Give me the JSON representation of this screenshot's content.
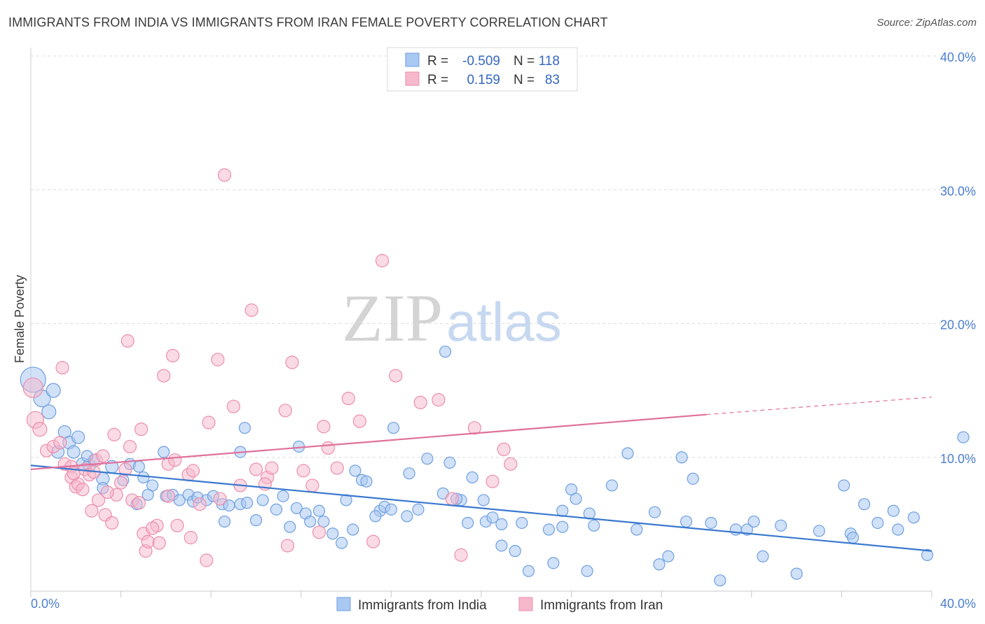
{
  "title": "IMMIGRANTS FROM INDIA VS IMMIGRANTS FROM IRAN FEMALE POVERTY CORRELATION CHART",
  "source": "Source: ZipAtlas.com",
  "watermark": {
    "zip": "ZIP",
    "atlas": "atlas"
  },
  "colors": {
    "india_fill": "#a9c8f2",
    "india_stroke": "#6f9fe0",
    "india_line": "#3a78d0",
    "iran_fill": "#f6b8cb",
    "iran_stroke": "#ec8eab",
    "iran_line": "#e0709a",
    "grid": "#dcdcdc",
    "tick_text": "#4a7fd0"
  },
  "legend": {
    "rows": [
      {
        "r_label": "R =",
        "r_value": "-0.509",
        "n_label": "N =",
        "n_value": "118"
      },
      {
        "r_label": "R =",
        "r_value": "0.159",
        "n_label": "N =",
        "n_value": "83"
      }
    ]
  },
  "chart_data": {
    "type": "scatter",
    "title": "IMMIGRANTS FROM INDIA VS IMMIGRANTS FROM IRAN FEMALE POVERTY CORRELATION CHART",
    "xlabel": "",
    "ylabel": "Female Poverty",
    "xlim": [
      0,
      40
    ],
    "ylim": [
      0,
      40
    ],
    "x_tick_labels": [
      "0.0%",
      "40.0%"
    ],
    "y_tick_labels": [
      "10.0%",
      "20.0%",
      "30.0%",
      "40.0%"
    ],
    "y_ticks": [
      10,
      20,
      30,
      40
    ],
    "grid": "horizontal dashed",
    "legend_position": "bottom-center",
    "series": [
      {
        "name": "Immigrants from India",
        "r": -0.509,
        "n": 118,
        "trend": {
          "x": [
            0,
            40
          ],
          "y": [
            9.4,
            3.0
          ]
        },
        "points": [
          [
            0.1,
            15.8,
            18
          ],
          [
            0.5,
            14.4,
            12
          ],
          [
            1.0,
            15.0,
            10
          ],
          [
            0.8,
            13.4,
            10
          ],
          [
            1.5,
            11.9,
            9
          ],
          [
            1.7,
            11.1,
            9
          ],
          [
            2.1,
            11.5,
            9
          ],
          [
            1.2,
            10.4,
            9
          ],
          [
            1.9,
            10.4,
            9
          ],
          [
            2.3,
            9.5,
            9
          ],
          [
            2.6,
            9.4,
            9
          ],
          [
            3.2,
            8.4,
            9
          ],
          [
            2.8,
            9.8,
            8
          ],
          [
            3.6,
            9.3,
            9
          ],
          [
            4.4,
            9.5,
            8
          ],
          [
            3.2,
            7.7,
            8
          ],
          [
            4.1,
            8.3,
            8
          ],
          [
            5.0,
            8.5,
            8
          ],
          [
            5.4,
            7.9,
            8
          ],
          [
            4.7,
            6.5,
            8
          ],
          [
            5.2,
            7.2,
            8
          ],
          [
            5.9,
            10.4,
            8
          ],
          [
            6.0,
            7.1,
            8
          ],
          [
            6.3,
            7.2,
            8
          ],
          [
            6.6,
            6.8,
            8
          ],
          [
            7.0,
            7.2,
            8
          ],
          [
            7.2,
            6.7,
            8
          ],
          [
            7.4,
            7.0,
            8
          ],
          [
            7.8,
            6.8,
            8
          ],
          [
            8.1,
            7.1,
            8
          ],
          [
            8.5,
            6.5,
            8
          ],
          [
            8.8,
            6.4,
            8
          ],
          [
            9.3,
            6.5,
            8
          ],
          [
            8.6,
            5.2,
            8
          ],
          [
            9.6,
            6.6,
            8
          ],
          [
            9.3,
            10.4,
            8
          ],
          [
            9.5,
            12.2,
            8
          ],
          [
            10.0,
            5.3,
            8
          ],
          [
            10.3,
            6.8,
            8
          ],
          [
            10.9,
            6.1,
            8
          ],
          [
            11.2,
            7.1,
            8
          ],
          [
            11.5,
            4.8,
            8
          ],
          [
            11.8,
            6.2,
            8
          ],
          [
            12.2,
            5.8,
            8
          ],
          [
            11.9,
            10.8,
            8
          ],
          [
            12.4,
            5.2,
            8
          ],
          [
            12.8,
            6.0,
            8
          ],
          [
            13.0,
            5.2,
            8
          ],
          [
            13.4,
            4.3,
            8
          ],
          [
            14.0,
            6.8,
            8
          ],
          [
            13.8,
            3.6,
            8
          ],
          [
            14.4,
            9.0,
            8
          ],
          [
            14.7,
            8.3,
            8
          ],
          [
            14.3,
            4.6,
            8
          ],
          [
            15.5,
            6.0,
            8
          ],
          [
            15.3,
            5.6,
            8
          ],
          [
            15.7,
            6.3,
            8
          ],
          [
            16.0,
            6.1,
            8
          ],
          [
            16.7,
            5.6,
            8
          ],
          [
            17.2,
            6.1,
            8
          ],
          [
            14.9,
            8.2,
            8
          ],
          [
            17.6,
            9.9,
            8
          ],
          [
            18.6,
            9.6,
            8
          ],
          [
            18.3,
            7.3,
            8
          ],
          [
            19.1,
            6.8,
            8
          ],
          [
            18.9,
            6.9,
            8
          ],
          [
            19.4,
            5.1,
            8
          ],
          [
            19.6,
            8.5,
            8
          ],
          [
            20.1,
            6.8,
            8
          ],
          [
            20.2,
            5.2,
            8
          ],
          [
            20.5,
            5.5,
            8
          ],
          [
            20.9,
            3.4,
            8
          ],
          [
            20.9,
            5.0,
            8
          ],
          [
            21.5,
            3.0,
            8
          ],
          [
            21.8,
            5.1,
            8
          ],
          [
            22.1,
            1.5,
            8
          ],
          [
            23.0,
            4.6,
            8
          ],
          [
            23.2,
            2.1,
            8
          ],
          [
            23.6,
            6.0,
            8
          ],
          [
            23.6,
            4.8,
            8
          ],
          [
            24.0,
            7.6,
            8
          ],
          [
            24.7,
            1.5,
            8
          ],
          [
            24.8,
            5.8,
            8
          ],
          [
            25.8,
            7.9,
            8
          ],
          [
            26.5,
            10.3,
            8
          ],
          [
            26.9,
            4.6,
            8
          ],
          [
            27.7,
            5.9,
            8
          ],
          [
            27.9,
            2.0,
            8
          ],
          [
            28.3,
            2.6,
            8
          ],
          [
            28.9,
            10.0,
            8
          ],
          [
            29.4,
            8.4,
            8
          ],
          [
            30.2,
            5.1,
            8
          ],
          [
            30.6,
            0.8,
            8
          ],
          [
            31.3,
            4.6,
            8
          ],
          [
            31.8,
            4.6,
            8
          ],
          [
            32.1,
            5.2,
            8
          ],
          [
            32.5,
            2.6,
            8
          ],
          [
            34.0,
            1.3,
            8
          ],
          [
            35.0,
            4.5,
            8
          ],
          [
            36.1,
            7.9,
            8
          ],
          [
            36.4,
            4.3,
            8
          ],
          [
            36.5,
            4.0,
            8
          ],
          [
            37.6,
            5.1,
            8
          ],
          [
            38.3,
            6.0,
            8
          ],
          [
            38.5,
            4.6,
            8
          ],
          [
            39.2,
            5.5,
            8
          ],
          [
            41.4,
            11.5,
            8
          ],
          [
            16.1,
            12.2,
            8
          ],
          [
            18.4,
            17.9,
            8
          ],
          [
            16.8,
            8.8,
            8
          ],
          [
            24.2,
            6.9,
            8
          ],
          [
            25.0,
            4.9,
            8
          ],
          [
            29.1,
            5.2,
            8
          ],
          [
            33.3,
            4.9,
            8
          ],
          [
            37.0,
            6.5,
            8
          ],
          [
            39.8,
            2.7,
            8
          ],
          [
            2.5,
            10.1,
            8
          ],
          [
            4.8,
            9.3,
            8
          ]
        ]
      },
      {
        "name": "Immigrants from Iran",
        "r": 0.159,
        "n": 83,
        "trend": {
          "x": [
            0,
            30
          ],
          "y": [
            9.1,
            13.2
          ]
        },
        "trend_extension": {
          "x": [
            30,
            40
          ],
          "y": [
            13.2,
            14.5
          ]
        },
        "points": [
          [
            0.1,
            15.2,
            14
          ],
          [
            0.2,
            12.8,
            12
          ],
          [
            0.4,
            12.1,
            10
          ],
          [
            0.7,
            10.5,
            9
          ],
          [
            1.0,
            10.8,
            9
          ],
          [
            1.4,
            16.7,
            9
          ],
          [
            1.3,
            11.1,
            9
          ],
          [
            1.5,
            9.5,
            9
          ],
          [
            1.8,
            9.3,
            9
          ],
          [
            1.8,
            8.5,
            9
          ],
          [
            2.0,
            7.8,
            9
          ],
          [
            2.1,
            8.0,
            9
          ],
          [
            2.3,
            7.6,
            9
          ],
          [
            2.4,
            9.1,
            9
          ],
          [
            2.6,
            8.7,
            9
          ],
          [
            2.8,
            8.9,
            9
          ],
          [
            2.9,
            9.8,
            9
          ],
          [
            3.2,
            10.1,
            9
          ],
          [
            3.0,
            6.8,
            9
          ],
          [
            3.3,
            5.7,
            9
          ],
          [
            3.6,
            5.1,
            9
          ],
          [
            3.7,
            11.7,
            9
          ],
          [
            3.8,
            7.2,
            9
          ],
          [
            4.0,
            8.1,
            9
          ],
          [
            4.2,
            9.1,
            9
          ],
          [
            4.4,
            10.8,
            9
          ],
          [
            4.5,
            6.8,
            9
          ],
          [
            4.3,
            18.7,
            9
          ],
          [
            4.9,
            12.1,
            9
          ],
          [
            5.0,
            4.3,
            9
          ],
          [
            5.1,
            3.0,
            9
          ],
          [
            5.2,
            3.7,
            9
          ],
          [
            5.6,
            4.9,
            9
          ],
          [
            5.7,
            3.6,
            9
          ],
          [
            5.9,
            16.1,
            9
          ],
          [
            6.3,
            17.6,
            9
          ],
          [
            6.1,
            9.5,
            9
          ],
          [
            6.4,
            9.8,
            9
          ],
          [
            6.1,
            7.1,
            9
          ],
          [
            7.0,
            8.7,
            9
          ],
          [
            7.2,
            9.0,
            9
          ],
          [
            7.5,
            6.5,
            9
          ],
          [
            7.9,
            12.6,
            9
          ],
          [
            7.8,
            2.3,
            9
          ],
          [
            8.3,
            17.3,
            9
          ],
          [
            8.4,
            6.9,
            9
          ],
          [
            8.6,
            31.1,
            9
          ],
          [
            9.0,
            13.8,
            9
          ],
          [
            9.3,
            7.9,
            9
          ],
          [
            9.8,
            21.0,
            9
          ],
          [
            10.0,
            9.1,
            9
          ],
          [
            10.5,
            8.5,
            9
          ],
          [
            10.7,
            9.2,
            9
          ],
          [
            11.3,
            13.5,
            9
          ],
          [
            11.4,
            3.4,
            9
          ],
          [
            11.6,
            17.1,
            9
          ],
          [
            12.1,
            9.0,
            9
          ],
          [
            12.5,
            7.9,
            9
          ],
          [
            13.0,
            12.3,
            9
          ],
          [
            13.2,
            10.7,
            9
          ],
          [
            13.6,
            9.2,
            9
          ],
          [
            14.1,
            14.4,
            9
          ],
          [
            14.6,
            12.7,
            9
          ],
          [
            15.2,
            3.7,
            9
          ],
          [
            15.6,
            24.7,
            9
          ],
          [
            16.2,
            16.1,
            9
          ],
          [
            17.3,
            14.1,
            9
          ],
          [
            18.1,
            14.3,
            9
          ],
          [
            18.7,
            6.9,
            9
          ],
          [
            19.1,
            2.7,
            9
          ],
          [
            19.7,
            12.2,
            9
          ],
          [
            20.5,
            8.2,
            9
          ],
          [
            21.0,
            10.6,
            9
          ],
          [
            21.3,
            9.5,
            9
          ],
          [
            6.5,
            4.9,
            9
          ],
          [
            7.1,
            4.0,
            9
          ],
          [
            4.8,
            6.6,
            9
          ],
          [
            2.7,
            6.0,
            9
          ],
          [
            3.4,
            7.4,
            9
          ],
          [
            5.4,
            4.7,
            9
          ],
          [
            10.4,
            8.0,
            9
          ],
          [
            12.8,
            4.4,
            9
          ],
          [
            1.9,
            8.8,
            9
          ]
        ]
      }
    ]
  }
}
